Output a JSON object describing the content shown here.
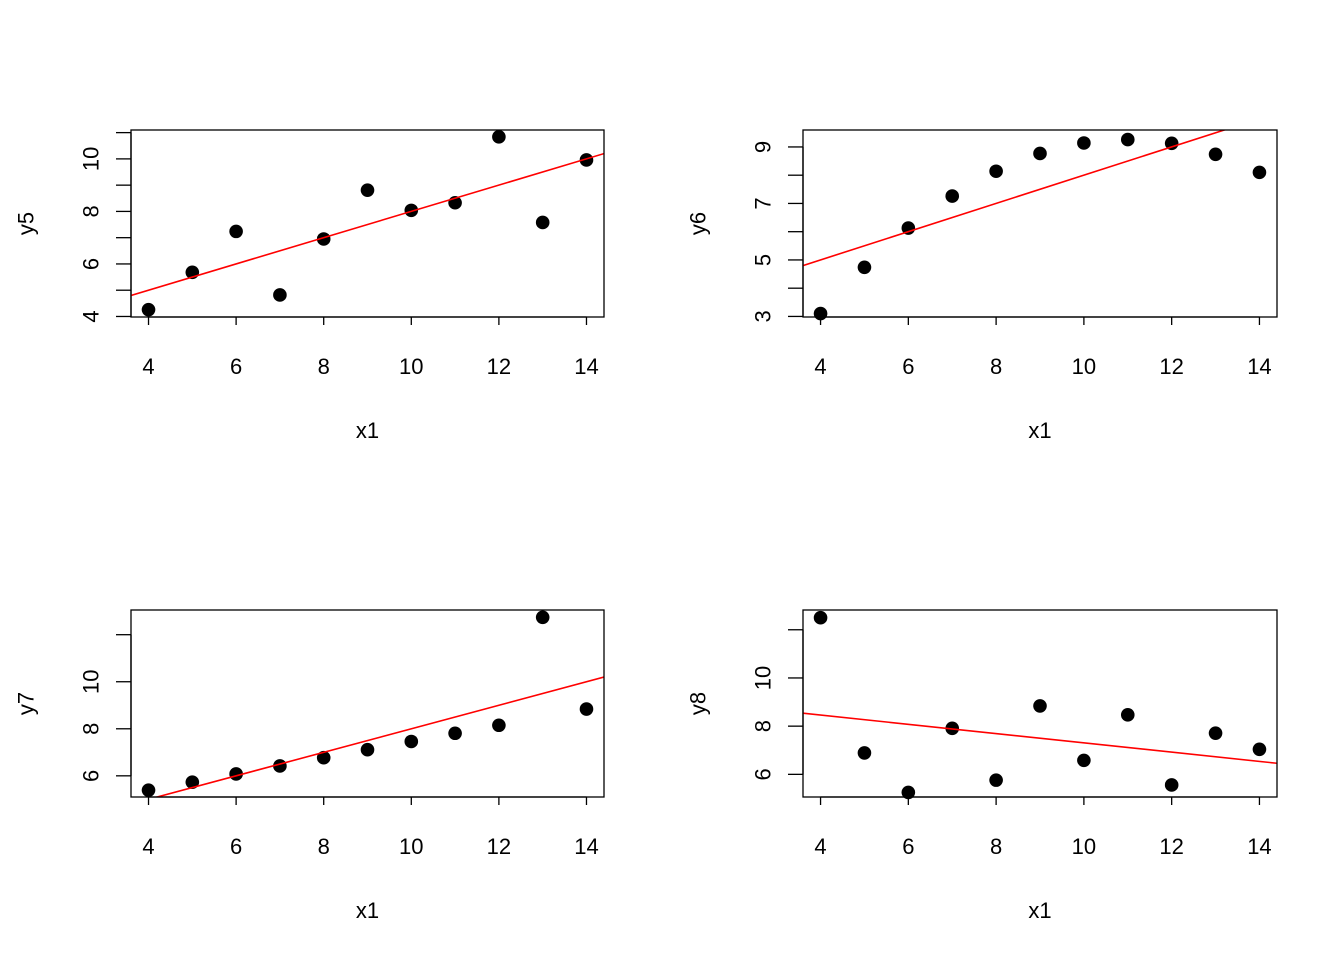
{
  "figure": {
    "background": "#ffffff",
    "point_color": "#000000",
    "line_color": "#ff0000"
  },
  "chart_data": [
    {
      "type": "scatter",
      "title": "",
      "xlabel": "x1",
      "ylabel": "y5",
      "x": [
        10,
        8,
        13,
        9,
        11,
        14,
        6,
        4,
        12,
        7,
        5
      ],
      "y": [
        8.04,
        6.95,
        7.58,
        8.81,
        8.33,
        9.96,
        7.24,
        4.26,
        10.84,
        4.82,
        5.68
      ],
      "xlim": [
        3.6,
        14.4
      ],
      "ylim": [
        3.98,
        11.1
      ],
      "xticks": [
        4,
        6,
        8,
        10,
        12,
        14
      ],
      "xtick_labels": [
        "4",
        "6",
        "8",
        "10",
        "12",
        "14"
      ],
      "yticks": [
        4,
        5,
        6,
        7,
        8,
        9,
        10,
        11
      ],
      "ytick_labels": [
        "4",
        "",
        "6",
        "",
        "8",
        "",
        "10",
        ""
      ],
      "fit_line": {
        "intercept": 3.0001,
        "slope": 0.5001
      },
      "grid": false,
      "legend": null
    },
    {
      "type": "scatter",
      "title": "",
      "xlabel": "x1",
      "ylabel": "y6",
      "x": [
        10,
        8,
        13,
        9,
        11,
        14,
        6,
        4,
        12,
        7,
        5
      ],
      "y": [
        9.14,
        8.14,
        8.74,
        8.77,
        9.26,
        8.1,
        6.13,
        3.1,
        9.13,
        7.26,
        4.74
      ],
      "xlim": [
        3.6,
        14.4
      ],
      "ylim": [
        2.98,
        9.6
      ],
      "xticks": [
        4,
        6,
        8,
        10,
        12,
        14
      ],
      "xtick_labels": [
        "4",
        "6",
        "8",
        "10",
        "12",
        "14"
      ],
      "yticks": [
        3,
        4,
        5,
        6,
        7,
        8,
        9
      ],
      "ytick_labels": [
        "3",
        "",
        "5",
        "",
        "7",
        "",
        "9"
      ],
      "fit_line": {
        "intercept": 3.0009,
        "slope": 0.5
      },
      "grid": false,
      "legend": null
    },
    {
      "type": "scatter",
      "title": "",
      "xlabel": "x1",
      "ylabel": "y7",
      "x": [
        10,
        8,
        13,
        9,
        11,
        14,
        6,
        4,
        12,
        7,
        5
      ],
      "y": [
        7.46,
        6.77,
        12.74,
        7.11,
        7.81,
        8.84,
        6.08,
        5.39,
        8.15,
        6.42,
        5.73
      ],
      "xlim": [
        3.6,
        14.4
      ],
      "ylim": [
        5.1,
        13.05
      ],
      "xticks": [
        4,
        6,
        8,
        10,
        12,
        14
      ],
      "xtick_labels": [
        "4",
        "6",
        "8",
        "10",
        "12",
        "14"
      ],
      "yticks": [
        6,
        8,
        10,
        12
      ],
      "ytick_labels": [
        "6",
        "8",
        "10",
        ""
      ],
      "fit_line": {
        "intercept": 3.0025,
        "slope": 0.4997
      },
      "grid": false,
      "legend": null
    },
    {
      "type": "scatter",
      "title": "",
      "xlabel": "x1",
      "ylabel": "y8",
      "x": [
        10,
        8,
        13,
        9,
        11,
        14,
        6,
        4,
        12,
        7,
        5
      ],
      "y": [
        6.58,
        5.76,
        7.71,
        8.84,
        8.47,
        7.04,
        5.25,
        12.5,
        5.56,
        7.91,
        6.89
      ],
      "xlim": [
        3.6,
        14.4
      ],
      "ylim": [
        5.06,
        12.82
      ],
      "xticks": [
        4,
        6,
        8,
        10,
        12,
        14
      ],
      "xtick_labels": [
        "4",
        "6",
        "8",
        "10",
        "12",
        "14"
      ],
      "yticks": [
        6,
        8,
        10,
        12
      ],
      "ytick_labels": [
        "6",
        "8",
        "10",
        ""
      ],
      "fit_line": {
        "intercept": 9.231,
        "slope": -0.1924
      },
      "grid": false,
      "legend": null
    }
  ]
}
